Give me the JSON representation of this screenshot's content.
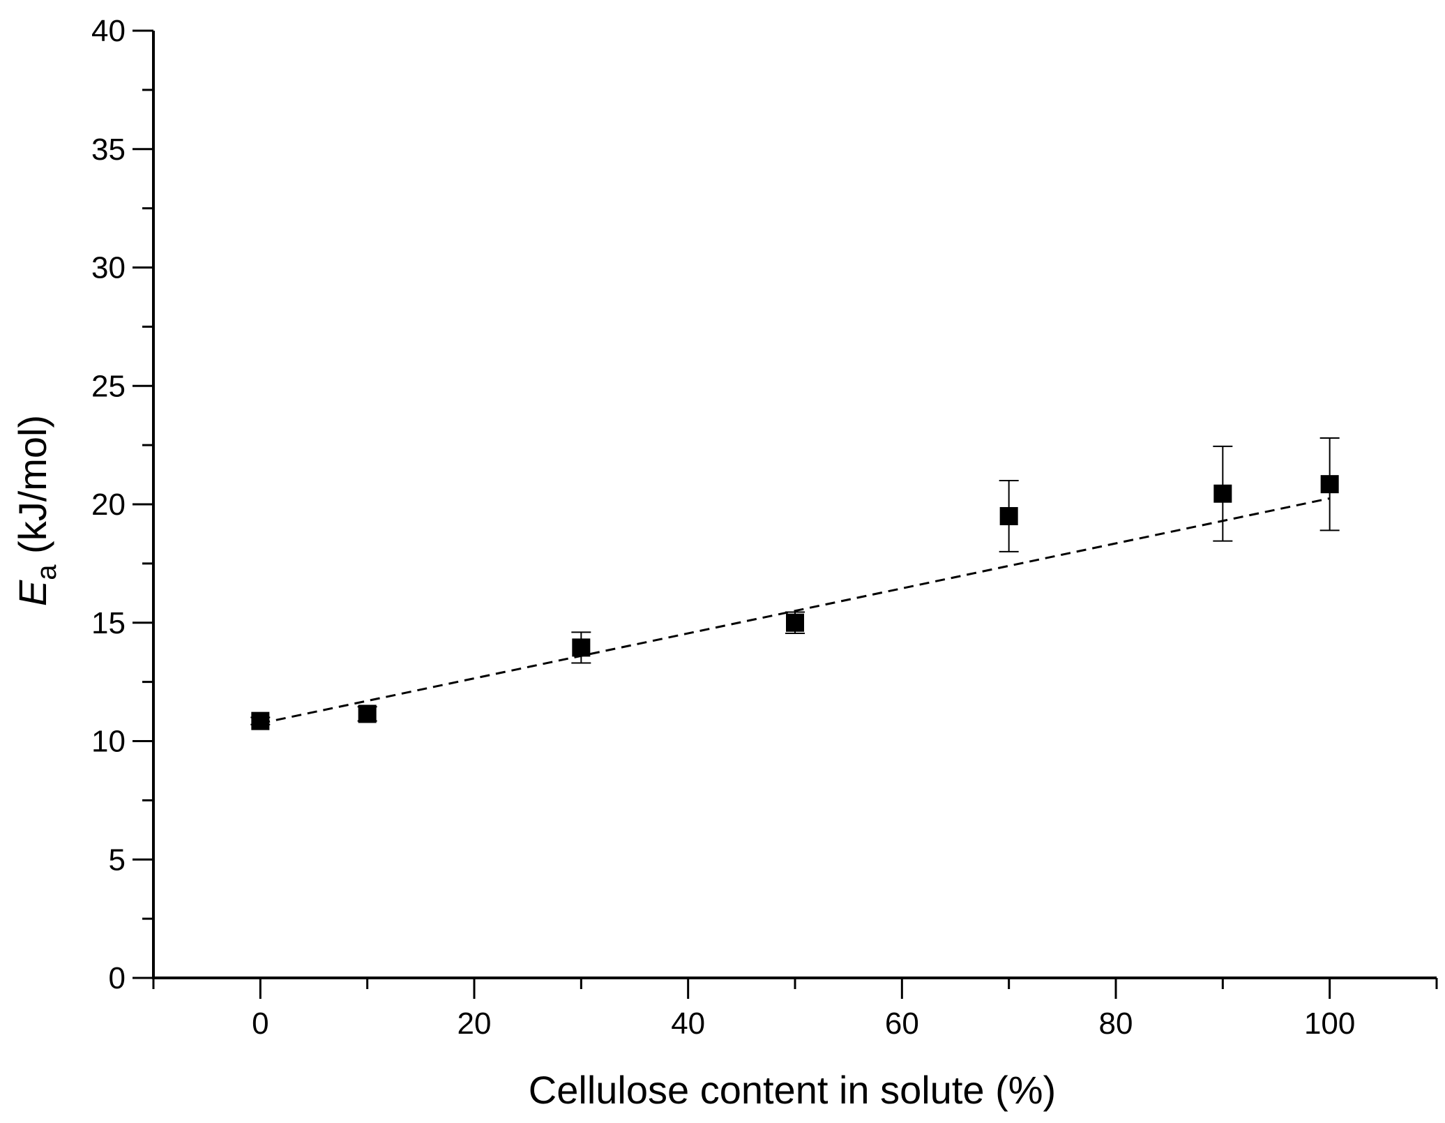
{
  "chart_data": {
    "type": "scatter",
    "xlabel": "Cellulose content in solute (%)",
    "ylabel_main": "E",
    "ylabel_sub": "a",
    "ylabel_unit": " (kJ/mol)",
    "xlim": [
      -10,
      110
    ],
    "ylim": [
      0,
      40
    ],
    "xticks": [
      0,
      20,
      40,
      60,
      80,
      100
    ],
    "yticks": [
      0,
      5,
      10,
      15,
      20,
      25,
      30,
      35,
      40
    ],
    "grid": false,
    "series": [
      {
        "x": [
          0,
          10,
          30,
          50,
          70,
          90,
          100
        ],
        "y": [
          10.85,
          11.15,
          13.95,
          15.0,
          19.5,
          20.45,
          20.85
        ],
        "yerr": [
          0.15,
          0.3,
          0.65,
          0.45,
          1.5,
          2.0,
          1.95
        ],
        "marker": "square",
        "color": "#000000"
      }
    ],
    "fit_line": {
      "x": [
        0,
        100
      ],
      "y": [
        10.75,
        20.25
      ],
      "style": "dashed"
    }
  }
}
